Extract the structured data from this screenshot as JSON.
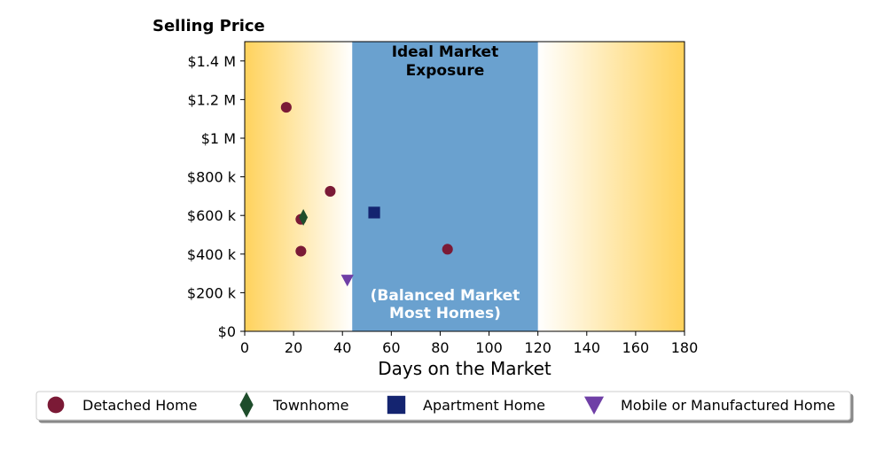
{
  "chart_data": {
    "type": "scatter",
    "title": "Selling Price",
    "xlabel": "Days on the Market",
    "ylabel": "",
    "xlim": [
      0,
      180
    ],
    "ylim": [
      0,
      1500000
    ],
    "x_ticks": [
      0,
      20,
      40,
      60,
      80,
      100,
      120,
      140,
      160,
      180
    ],
    "x_tick_labels": [
      "0",
      "20",
      "40",
      "60",
      "80",
      "100",
      "120",
      "140",
      "160",
      "180"
    ],
    "y_ticks": [
      0,
      200000,
      400000,
      600000,
      800000,
      1000000,
      1200000,
      1400000
    ],
    "y_tick_labels": [
      "$0",
      "$200 k",
      "$400 k",
      "$600 k",
      "$800 k",
      "$1 M",
      "$1.2 M",
      "$1.4 M"
    ],
    "grid": false,
    "legend_position": "bottom",
    "band": {
      "x_start": 44,
      "x_end": 120,
      "color": "#6aa1cf",
      "label_top": [
        "Ideal Market",
        "Exposure"
      ],
      "label_bottom": [
        "(Balanced Market",
        "Most Homes)"
      ]
    },
    "background_gradient": {
      "edge_color": "#ffd25c",
      "center_color": "#ffffff"
    },
    "series": [
      {
        "name": "Detached Home",
        "marker": "circle",
        "color": "#7b1a36",
        "x": [
          17,
          23,
          23,
          35,
          83
        ],
        "y": [
          1160000,
          580000,
          415000,
          725000,
          425000
        ]
      },
      {
        "name": "Townhome",
        "marker": "diamond",
        "color": "#1e4d2b",
        "x": [
          24
        ],
        "y": [
          590000
        ]
      },
      {
        "name": "Apartment Home",
        "marker": "square",
        "color": "#142470",
        "x": [
          53
        ],
        "y": [
          615000
        ]
      },
      {
        "name": "Mobile or Manufactured Home",
        "marker": "triangle-down",
        "color": "#6f3fa6",
        "x": [
          42
        ],
        "y": [
          265000
        ]
      }
    ]
  }
}
